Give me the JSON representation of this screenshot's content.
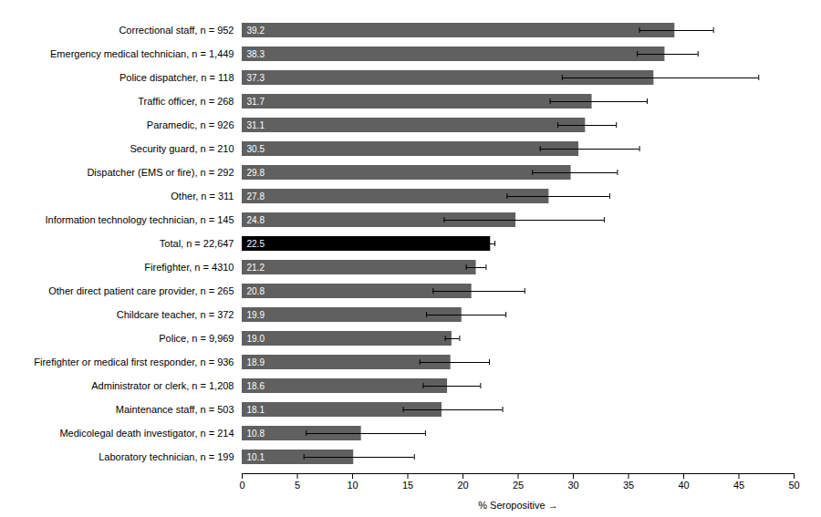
{
  "chart_data": {
    "type": "bar",
    "orientation": "horizontal",
    "categories": [
      "Correctional staff, n = 952",
      "Emergency medical technician, n = 1,449",
      "Police dispatcher, n = 118",
      "Traffic officer, n = 268",
      "Paramedic, n = 926",
      "Security guard, n = 210",
      "Dispatcher (EMS or fire), n = 292",
      "Other, n = 311",
      "Information technology technician, n = 145",
      "Total, n = 22,647",
      "Firefighter, n = 4310",
      "Other direct patient care provider, n = 265",
      "Childcare teacher, n = 372",
      "Police, n = 9,969",
      "Firefighter or medical first responder, n = 936",
      "Administrator or clerk, n = 1,208",
      "Maintenance staff, n = 503",
      "Medicolegal death investigator, n = 214",
      "Laboratory technician, n = 199"
    ],
    "values": [
      39.2,
      38.3,
      37.3,
      31.7,
      31.1,
      30.5,
      29.8,
      27.8,
      24.8,
      22.5,
      21.2,
      20.8,
      19.9,
      19.0,
      18.9,
      18.6,
      18.1,
      10.8,
      10.1
    ],
    "value_labels": [
      "39.2",
      "38.3",
      "37.3",
      "31.7",
      "31.1",
      "30.5",
      "29.8",
      "27.8",
      "24.8",
      "22.5",
      "21.2",
      "20.8",
      "19.9",
      "19.0",
      "18.9",
      "18.6",
      "18.1",
      "10.8",
      "10.1"
    ],
    "ci_lower": [
      3.2,
      2.5,
      8.3,
      3.8,
      2.5,
      3.5,
      3.5,
      3.8,
      6.5,
      0.4,
      0.9,
      3.5,
      3.2,
      0.6,
      2.8,
      2.2,
      3.5,
      5.0,
      4.5
    ],
    "ci_upper": [
      3.5,
      3.0,
      9.5,
      5.0,
      2.8,
      5.5,
      4.2,
      5.5,
      8.0,
      0.4,
      0.9,
      4.8,
      4.0,
      0.7,
      3.5,
      3.0,
      5.5,
      5.8,
      5.5
    ],
    "colors": [
      "#606060",
      "#606060",
      "#606060",
      "#606060",
      "#606060",
      "#606060",
      "#606060",
      "#606060",
      "#606060",
      "#000000",
      "#606060",
      "#606060",
      "#606060",
      "#606060",
      "#606060",
      "#606060",
      "#606060",
      "#606060",
      "#606060"
    ],
    "xlabel": "% Seropositive",
    "xlim": [
      0,
      50
    ],
    "xticks": [
      0,
      5,
      10,
      15,
      20,
      25,
      30,
      35,
      40,
      45,
      50
    ],
    "data_labels": true,
    "grid": false
  }
}
